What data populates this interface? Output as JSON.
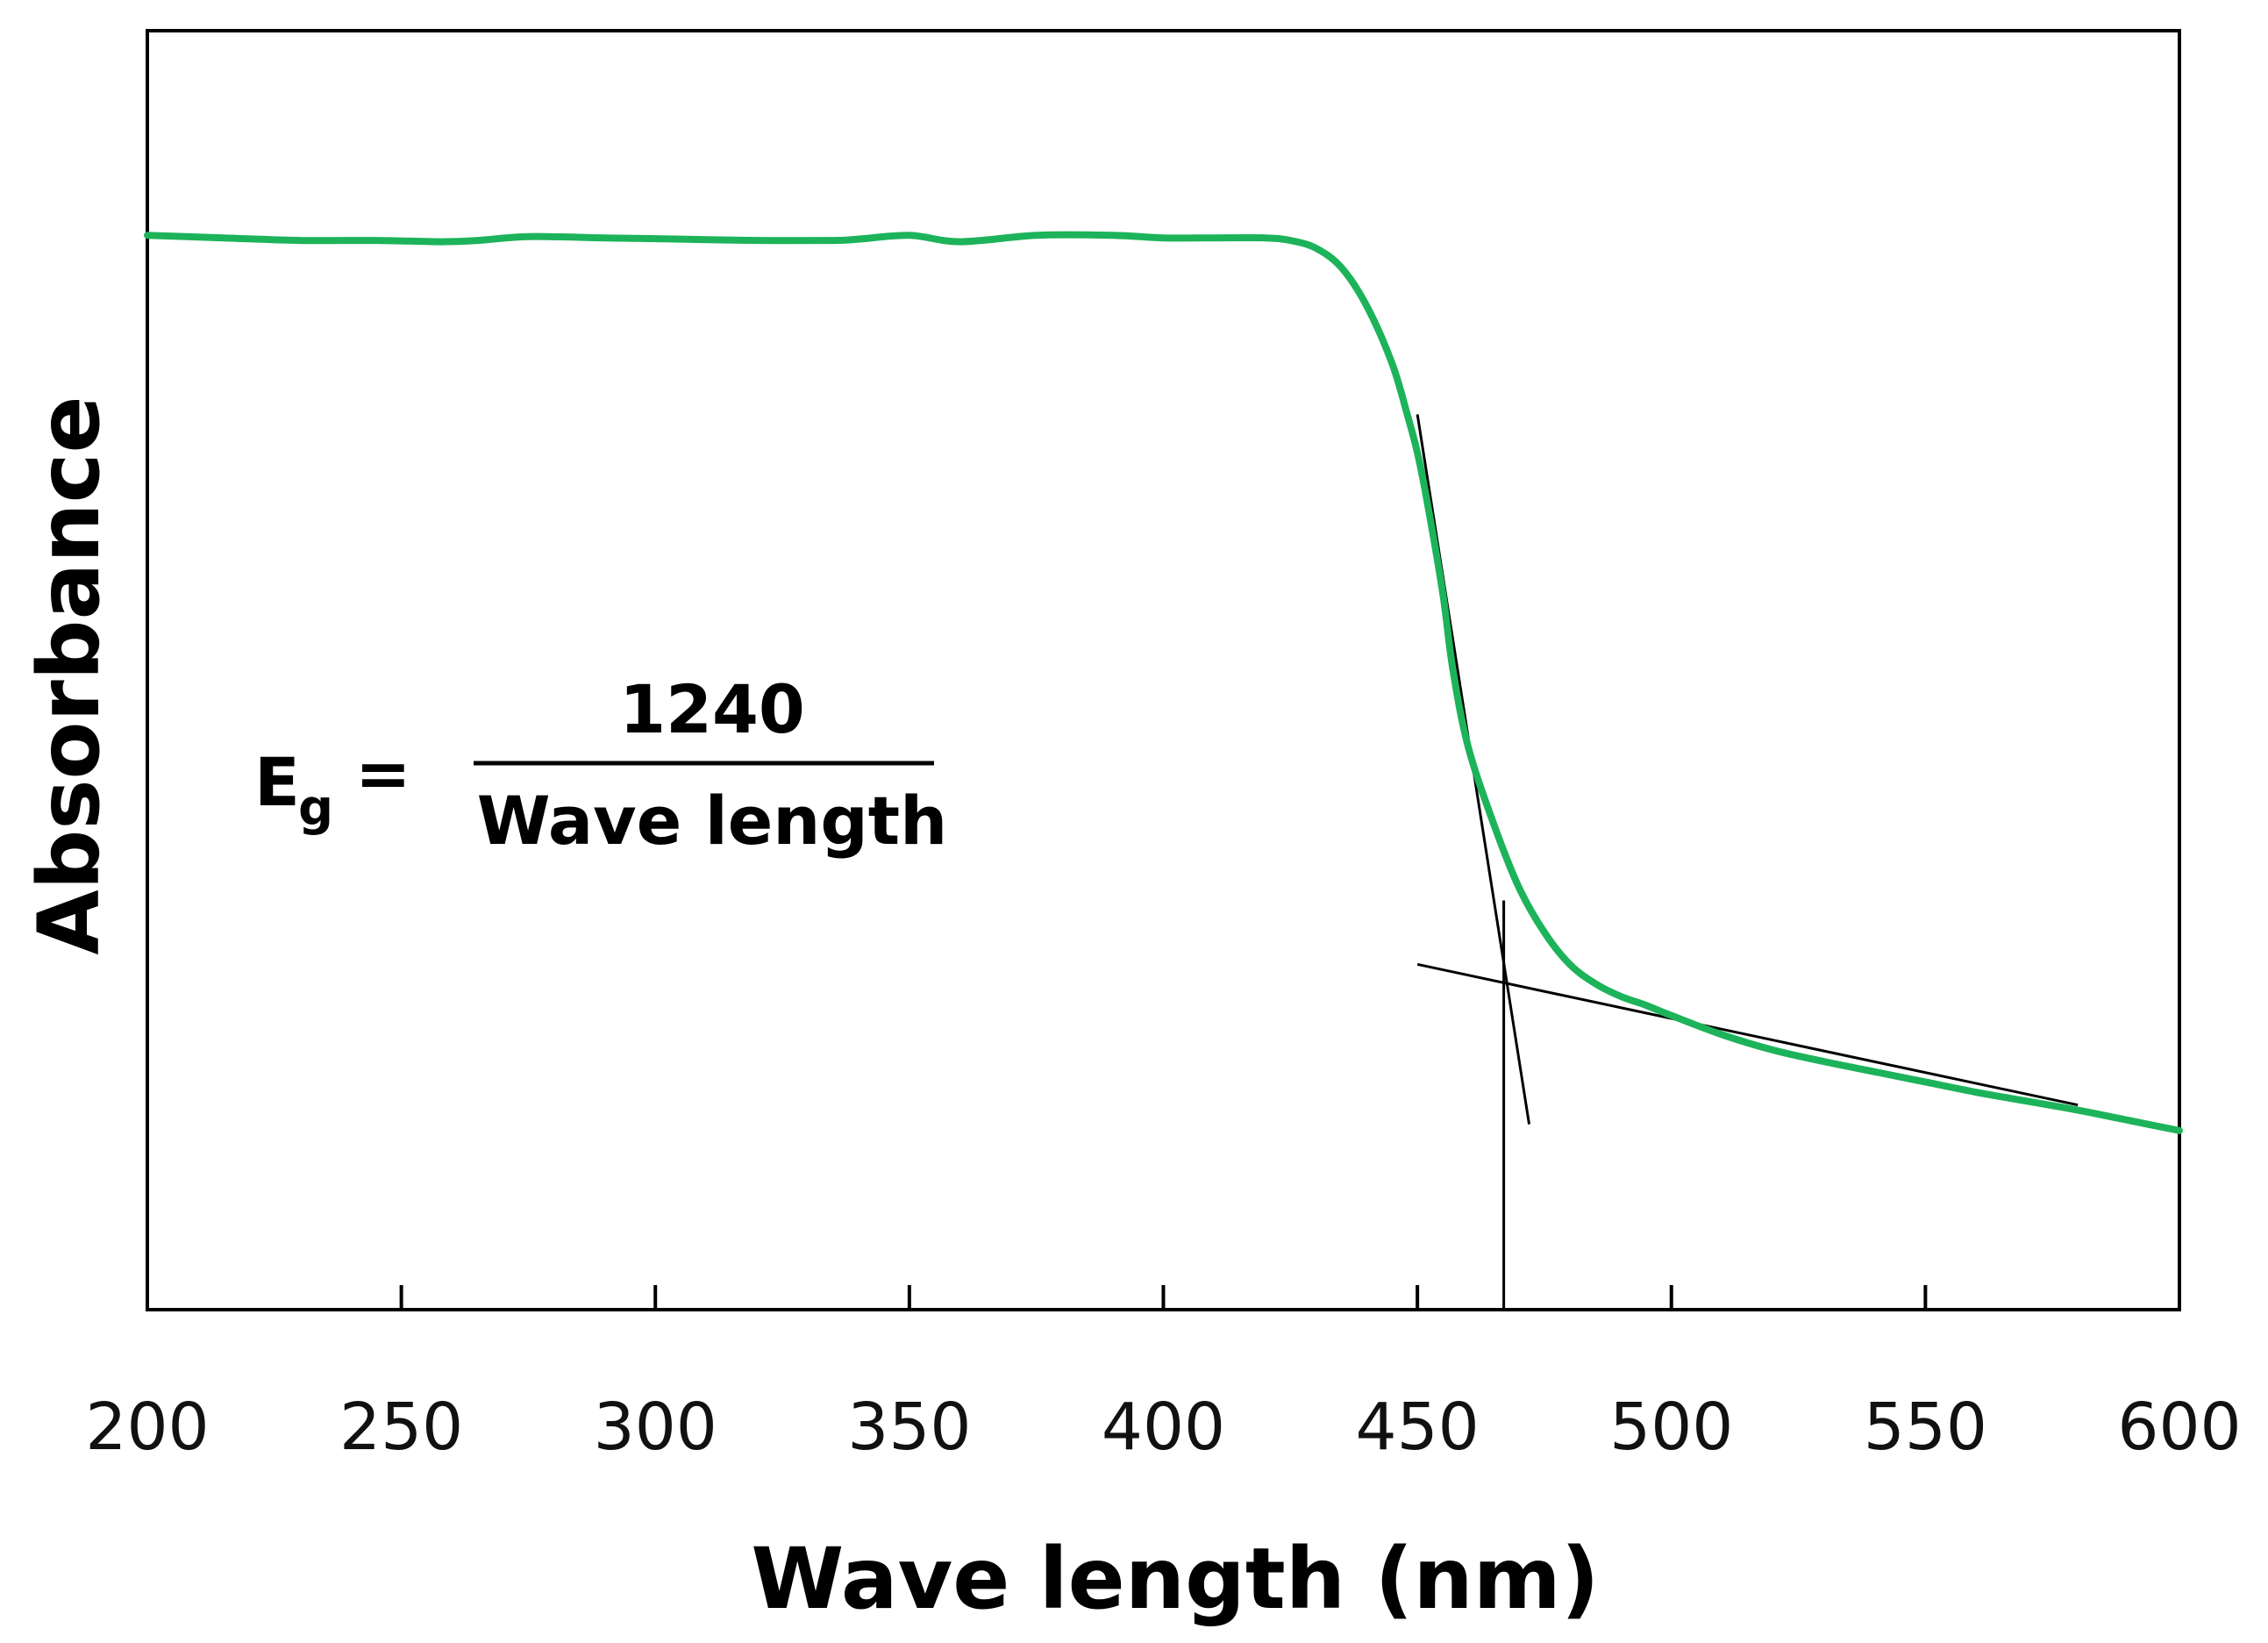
{
  "chart_data": {
    "type": "line",
    "title": "",
    "xlabel": "Wave length (nm)",
    "ylabel": "Absorbance",
    "xlim": [
      200,
      600
    ],
    "ylim": [
      0,
      1.0
    ],
    "xticks": [
      200,
      250,
      300,
      350,
      400,
      450,
      500,
      550,
      600
    ],
    "grid": false,
    "series": [
      {
        "name": "Absorbance",
        "color": "#1db35a",
        "x": [
          200,
          215,
          230,
          245,
          258,
          265,
          275,
          290,
          305,
          320,
          335,
          340,
          350,
          360,
          375,
          390,
          400,
          410,
          420,
          425,
          430,
          435,
          440,
          445,
          448,
          450,
          452,
          455,
          457,
          460,
          465,
          470,
          475,
          480,
          485,
          490,
          495,
          500,
          510,
          520,
          530,
          540,
          550,
          560,
          570,
          580,
          590,
          600
        ],
        "values": [
          0.84,
          0.838,
          0.836,
          0.836,
          0.835,
          0.836,
          0.839,
          0.838,
          0.837,
          0.836,
          0.836,
          0.837,
          0.84,
          0.835,
          0.84,
          0.84,
          0.838,
          0.838,
          0.838,
          0.836,
          0.83,
          0.815,
          0.785,
          0.74,
          0.7,
          0.67,
          0.63,
          0.56,
          0.5,
          0.44,
          0.38,
          0.33,
          0.295,
          0.27,
          0.255,
          0.245,
          0.238,
          0.23,
          0.215,
          0.203,
          0.194,
          0.186,
          0.178,
          0.17,
          0.163,
          0.156,
          0.148,
          0.14
        ]
      }
    ],
    "tangent_lines": [
      {
        "name": "edge-tangent",
        "from": [
          450,
          0.7
        ],
        "to": [
          472,
          0.145
        ],
        "color": "#000000"
      },
      {
        "name": "baseline-tangent",
        "from": [
          450,
          0.27
        ],
        "to": [
          580,
          0.16
        ],
        "color": "#000000"
      },
      {
        "name": "intercept-line",
        "from": [
          467,
          0.32
        ],
        "to": [
          467,
          0.0
        ],
        "color": "#000000"
      }
    ],
    "annotations": {
      "eq_lhs_main": "E",
      "eq_lhs_sub": "g",
      "eq_equals": "=",
      "eq_numerator": "1240",
      "eq_denominator": "Wave length"
    }
  }
}
